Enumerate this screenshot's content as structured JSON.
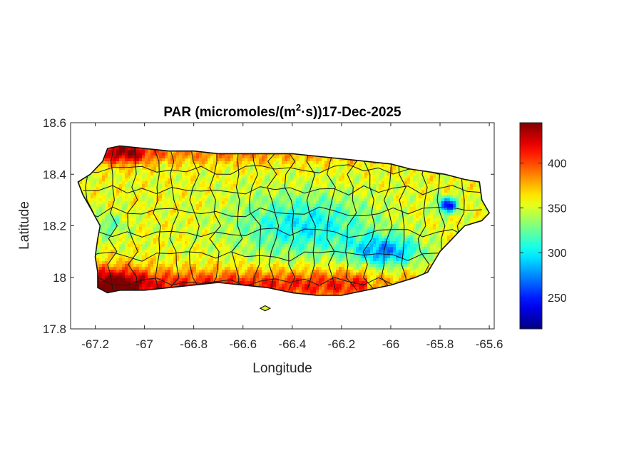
{
  "chart_data": {
    "type": "heatmap",
    "title": {
      "prefix": "PAR (micromoles/(m",
      "superscript": "2",
      "suffix": "·s))17-Dec-2025"
    },
    "xlabel": "Longitude",
    "ylabel": "Latitude",
    "xlim": [
      -67.3,
      -65.58
    ],
    "ylim": [
      17.8,
      18.6
    ],
    "xticks": [
      -67.2,
      -67,
      -66.8,
      -66.6,
      -66.4,
      -66.2,
      -66,
      -65.8,
      -65.6
    ],
    "xtick_labels": [
      "-67.2",
      "-67",
      "-66.8",
      "-66.6",
      "-66.4",
      "-66.2",
      "-66",
      "-65.8",
      "-65.6"
    ],
    "yticks": [
      17.8,
      18,
      18.2,
      18.4,
      18.6
    ],
    "ytick_labels": [
      "17.8",
      "18",
      "18.2",
      "18.4",
      "18.6"
    ],
    "colormap": "jet",
    "colorbar": {
      "range": [
        215,
        445
      ],
      "ticks": [
        250,
        300,
        350,
        400
      ],
      "tick_labels": [
        "250",
        "300",
        "350",
        "400"
      ]
    },
    "field_notes": {
      "high_region": "southwest coast and northwest corner ~420-445",
      "low_region": "eastern interior ~220-290",
      "mean_range": "300-400"
    },
    "outline": [
      [
        -67.27,
        18.37
      ],
      [
        -67.22,
        18.4
      ],
      [
        -67.17,
        18.45
      ],
      [
        -67.15,
        18.5
      ],
      [
        -67.1,
        18.51
      ],
      [
        -67.0,
        18.5
      ],
      [
        -66.9,
        18.49
      ],
      [
        -66.8,
        18.49
      ],
      [
        -66.7,
        18.48
      ],
      [
        -66.6,
        18.48
      ],
      [
        -66.5,
        18.48
      ],
      [
        -66.4,
        18.48
      ],
      [
        -66.3,
        18.47
      ],
      [
        -66.2,
        18.46
      ],
      [
        -66.1,
        18.45
      ],
      [
        -66.0,
        18.44
      ],
      [
        -65.92,
        18.42
      ],
      [
        -65.85,
        18.41
      ],
      [
        -65.78,
        18.4
      ],
      [
        -65.7,
        18.38
      ],
      [
        -65.64,
        18.37
      ],
      [
        -65.63,
        18.3
      ],
      [
        -65.6,
        18.25
      ],
      [
        -65.63,
        18.22
      ],
      [
        -65.7,
        18.2
      ],
      [
        -65.75,
        18.15
      ],
      [
        -65.8,
        18.1
      ],
      [
        -65.85,
        18.02
      ],
      [
        -65.9,
        18.0
      ],
      [
        -66.0,
        17.97
      ],
      [
        -66.1,
        17.95
      ],
      [
        -66.2,
        17.93
      ],
      [
        -66.3,
        17.93
      ],
      [
        -66.4,
        17.94
      ],
      [
        -66.5,
        17.96
      ],
      [
        -66.6,
        17.97
      ],
      [
        -66.7,
        17.98
      ],
      [
        -66.8,
        17.97
      ],
      [
        -66.9,
        17.96
      ],
      [
        -67.0,
        17.95
      ],
      [
        -67.1,
        17.95
      ],
      [
        -67.15,
        17.94
      ],
      [
        -67.19,
        17.96
      ],
      [
        -67.19,
        18.02
      ],
      [
        -67.2,
        18.08
      ],
      [
        -67.19,
        18.15
      ],
      [
        -67.18,
        18.2
      ],
      [
        -67.22,
        18.27
      ],
      [
        -67.25,
        18.32
      ]
    ],
    "islets": [
      [
        [
          -66.53,
          17.88
        ],
        [
          -66.51,
          17.89
        ],
        [
          -66.49,
          17.88
        ],
        [
          -66.51,
          17.87
        ]
      ]
    ]
  }
}
